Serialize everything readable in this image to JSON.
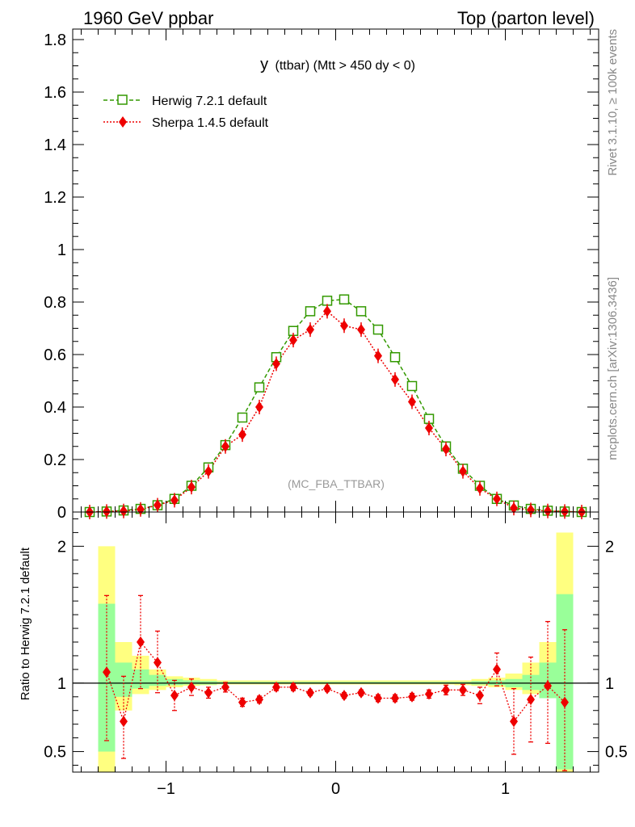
{
  "header": {
    "left": "1960 GeV ppbar",
    "right": "Top (parton level)"
  },
  "side_labels": {
    "rivet": "Rivet 3.1.10, ≥ 100k events",
    "mcplots": "mcplots.cern.ch [arXiv:1306.3436]"
  },
  "chart_data": [
    {
      "type": "line",
      "panel": "main",
      "title": "y (ttbar) (Mtt > 450 dy < 0)",
      "title_main": "y",
      "title_rest": "(ttbar) (Mtt > 450 dy < 0)",
      "watermark": "(MC_FBA_TTBAR)",
      "xlabel": "",
      "ylabel": "",
      "xlim": [
        -1.55,
        1.55
      ],
      "ylim": [
        0,
        1.84
      ],
      "yticks": [
        0,
        0.2,
        0.4,
        0.6,
        0.8,
        1,
        1.2,
        1.4,
        1.6,
        1.8
      ],
      "ytick_labels": [
        "0",
        "0.2",
        "0.4",
        "0.6",
        "0.8",
        "1",
        "1.2",
        "1.4",
        "1.6",
        "1.8"
      ],
      "legend_position": "top-left",
      "series": [
        {
          "name": "Herwig 7.2.1 default",
          "color": "#339900",
          "marker": "open-square",
          "linestyle": "dashed",
          "x": [
            -1.45,
            -1.35,
            -1.25,
            -1.15,
            -1.05,
            -0.95,
            -0.85,
            -0.75,
            -0.65,
            -0.55,
            -0.45,
            -0.35,
            -0.25,
            -0.15,
            -0.05,
            0.05,
            0.15,
            0.25,
            0.35,
            0.45,
            0.55,
            0.65,
            0.75,
            0.85,
            0.95,
            1.05,
            1.15,
            1.25,
            1.35,
            1.45
          ],
          "y": [
            0.0,
            0.002,
            0.006,
            0.012,
            0.026,
            0.05,
            0.1,
            0.17,
            0.255,
            0.36,
            0.475,
            0.59,
            0.69,
            0.765,
            0.805,
            0.81,
            0.765,
            0.695,
            0.59,
            0.48,
            0.355,
            0.25,
            0.165,
            0.1,
            0.05,
            0.025,
            0.012,
            0.005,
            0.002,
            0.0
          ]
        },
        {
          "name": "Sherpa 1.4.5 default",
          "color": "#ee0000",
          "marker": "filled-diamond",
          "linestyle": "dotted",
          "x": [
            -1.45,
            -1.35,
            -1.25,
            -1.15,
            -1.05,
            -0.95,
            -0.85,
            -0.75,
            -0.65,
            -0.55,
            -0.45,
            -0.35,
            -0.25,
            -0.15,
            -0.05,
            0.05,
            0.15,
            0.25,
            0.35,
            0.45,
            0.55,
            0.65,
            0.75,
            0.85,
            0.95,
            1.05,
            1.15,
            1.25,
            1.35,
            1.45
          ],
          "y": [
            0.0,
            0.002,
            0.004,
            0.01,
            0.026,
            0.045,
            0.095,
            0.155,
            0.25,
            0.295,
            0.4,
            0.565,
            0.655,
            0.695,
            0.765,
            0.71,
            0.695,
            0.595,
            0.505,
            0.42,
            0.32,
            0.24,
            0.155,
            0.09,
            0.05,
            0.015,
            0.008,
            0.004,
            0.002,
            0.0
          ]
        }
      ]
    },
    {
      "type": "line",
      "panel": "ratio",
      "ylabel": "Ratio to Herwig 7.2.1 default",
      "xlim": [
        -1.55,
        1.55
      ],
      "ylim": [
        0.35,
        2.25
      ],
      "yticks": [
        0.5,
        1,
        2
      ],
      "ytick_labels": [
        "0.5",
        "1",
        "2"
      ],
      "xticks": [
        -1,
        0,
        1
      ],
      "xtick_labels": [
        "−1",
        "0",
        "1"
      ],
      "reference": 1,
      "bands": {
        "x_edges": [
          -1.4,
          -1.3,
          -1.2,
          -1.1,
          -1.0,
          -0.9,
          -0.8,
          -0.7,
          -0.6,
          -0.5,
          -0.4,
          -0.3,
          -0.2,
          -0.1,
          0.0,
          0.1,
          0.2,
          0.3,
          0.4,
          0.5,
          0.6,
          0.7,
          0.8,
          0.9,
          1.0,
          1.1,
          1.2,
          1.3,
          1.4
        ],
        "yellow_lo": [
          0.35,
          0.8,
          0.92,
          0.95,
          0.97,
          0.98,
          0.985,
          0.99,
          0.99,
          0.99,
          0.99,
          0.99,
          0.99,
          0.99,
          0.99,
          0.99,
          0.99,
          0.99,
          0.99,
          0.99,
          0.99,
          0.985,
          0.98,
          0.97,
          0.95,
          0.92,
          0.9,
          0.35
        ],
        "yellow_hi": [
          2.0,
          1.3,
          1.2,
          1.1,
          1.05,
          1.04,
          1.03,
          1.02,
          1.02,
          1.02,
          1.02,
          1.02,
          1.02,
          1.02,
          1.02,
          1.02,
          1.02,
          1.02,
          1.02,
          1.02,
          1.02,
          1.02,
          1.03,
          1.04,
          1.07,
          1.15,
          1.3,
          2.1
        ],
        "green_lo": [
          0.5,
          0.9,
          0.96,
          0.98,
          0.985,
          0.99,
          0.99,
          0.995,
          0.995,
          0.995,
          0.995,
          0.995,
          0.995,
          0.995,
          0.995,
          0.995,
          0.995,
          0.995,
          0.995,
          0.995,
          0.995,
          0.995,
          0.99,
          0.985,
          0.97,
          0.95,
          0.89,
          0.37
        ],
        "green_hi": [
          1.58,
          1.15,
          1.1,
          1.06,
          1.03,
          1.02,
          1.015,
          1.01,
          1.01,
          1.01,
          1.01,
          1.01,
          1.01,
          1.01,
          1.01,
          1.01,
          1.01,
          1.01,
          1.01,
          1.01,
          1.01,
          1.01,
          1.015,
          1.02,
          1.03,
          1.06,
          1.15,
          1.65
        ]
      },
      "series": [
        {
          "name": "Sherpa 1.4.5 default / Herwig 7.2.1 default",
          "color": "#ee0000",
          "marker": "filled-diamond",
          "linestyle": "dotted",
          "x": [
            -1.35,
            -1.25,
            -1.15,
            -1.05,
            -0.95,
            -0.85,
            -0.75,
            -0.65,
            -0.55,
            -0.45,
            -0.35,
            -0.25,
            -0.15,
            -0.05,
            0.05,
            0.15,
            0.25,
            0.35,
            0.45,
            0.55,
            0.65,
            0.75,
            0.85,
            0.95,
            1.05,
            1.15,
            1.25,
            1.35
          ],
          "y": [
            1.08,
            0.72,
            1.3,
            1.15,
            0.91,
            0.97,
            0.93,
            0.97,
            0.86,
            0.88,
            0.97,
            0.97,
            0.93,
            0.96,
            0.91,
            0.93,
            0.89,
            0.89,
            0.9,
            0.92,
            0.95,
            0.95,
            0.91,
            1.1,
            0.72,
            0.88,
            0.98,
            0.86
          ],
          "err_lo": [
            0.5,
            0.27,
            0.34,
            0.22,
            0.11,
            0.06,
            0.04,
            0.035,
            0.03,
            0.025,
            0.025,
            0.025,
            0.02,
            0.02,
            0.02,
            0.02,
            0.025,
            0.025,
            0.025,
            0.03,
            0.035,
            0.04,
            0.06,
            0.12,
            0.24,
            0.31,
            0.42,
            0.5
          ],
          "err_hi": [
            0.56,
            0.33,
            0.34,
            0.23,
            0.11,
            0.06,
            0.04,
            0.035,
            0.03,
            0.025,
            0.025,
            0.025,
            0.02,
            0.02,
            0.02,
            0.02,
            0.025,
            0.025,
            0.025,
            0.03,
            0.035,
            0.04,
            0.06,
            0.12,
            0.24,
            0.31,
            0.47,
            0.53
          ]
        }
      ]
    }
  ]
}
